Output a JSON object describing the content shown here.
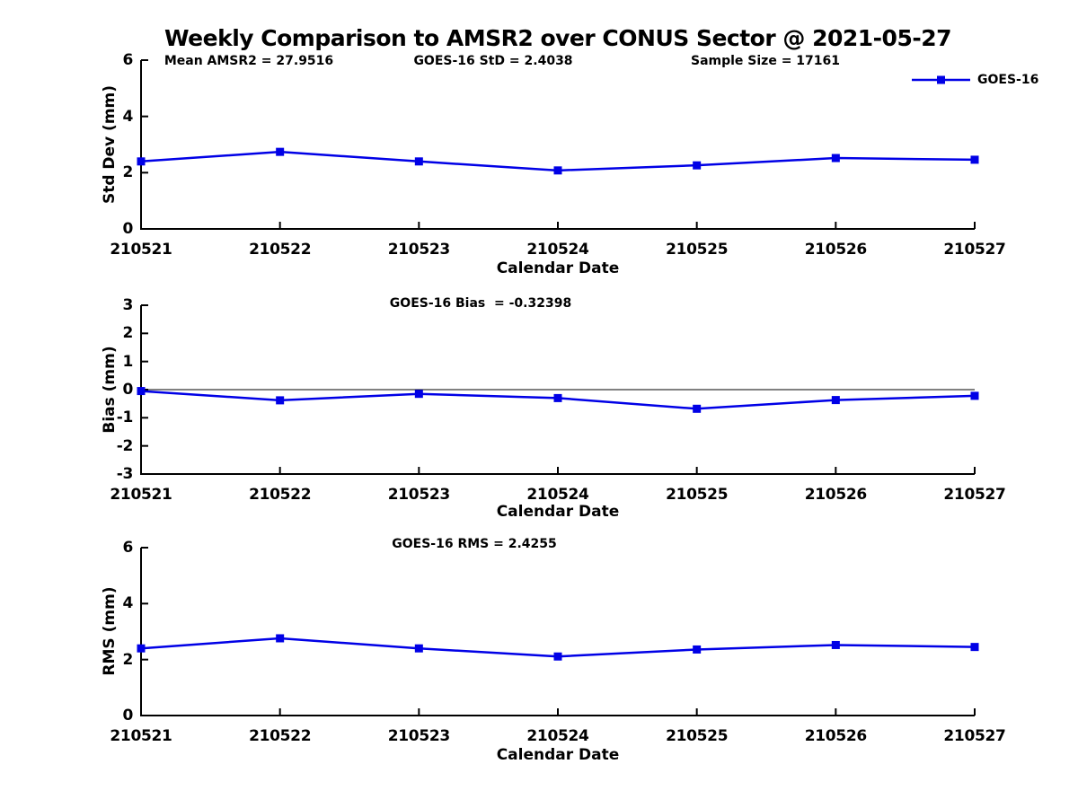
{
  "page": {
    "title": "Weekly Comparison to AMSR2 over CONUS Sector @ 2021-05-27"
  },
  "legend": {
    "label": "GOES-16",
    "position": "top-right"
  },
  "colors": {
    "line": "#0000E6",
    "axis": "#000000",
    "background": "#ffffff"
  },
  "chart_data": [
    {
      "type": "line",
      "title_annotations": [
        "Mean AMSR2 = 27.9516",
        "GOES-16 StD = 2.4038",
        "Sample Size = 17161"
      ],
      "ylabel": "Std Dev (mm)",
      "xlabel": "Calendar Date",
      "categories": [
        "210521",
        "210522",
        "210523",
        "210524",
        "210525",
        "210526",
        "210527"
      ],
      "series": [
        {
          "name": "GOES-16",
          "values": [
            2.4,
            2.74,
            2.4,
            2.08,
            2.26,
            2.52,
            2.46
          ]
        }
      ],
      "ylim": [
        0,
        6
      ],
      "yticks": [
        0,
        2,
        4,
        6
      ],
      "zero_line": false,
      "grid": false
    },
    {
      "type": "line",
      "title_annotations": [
        "GOES-16 Bias  = -0.32398"
      ],
      "ylabel": "Bias (mm)",
      "xlabel": "Calendar Date",
      "categories": [
        "210521",
        "210522",
        "210523",
        "210524",
        "210525",
        "210526",
        "210527"
      ],
      "series": [
        {
          "name": "GOES-16",
          "values": [
            -0.05,
            -0.38,
            -0.15,
            -0.3,
            -0.68,
            -0.37,
            -0.22
          ]
        }
      ],
      "ylim": [
        -3,
        3
      ],
      "yticks": [
        -3,
        -2,
        -1,
        0,
        1,
        2,
        3
      ],
      "zero_line": true,
      "grid": false
    },
    {
      "type": "line",
      "title_annotations": [
        "GOES-16 RMS = 2.4255"
      ],
      "ylabel": "RMS (mm)",
      "xlabel": "Calendar Date",
      "categories": [
        "210521",
        "210522",
        "210523",
        "210524",
        "210525",
        "210526",
        "210527"
      ],
      "series": [
        {
          "name": "GOES-16",
          "values": [
            2.4,
            2.76,
            2.4,
            2.11,
            2.36,
            2.52,
            2.45
          ]
        }
      ],
      "ylim": [
        0,
        6
      ],
      "yticks": [
        0,
        2,
        4,
        6
      ],
      "zero_line": false,
      "grid": false
    }
  ]
}
